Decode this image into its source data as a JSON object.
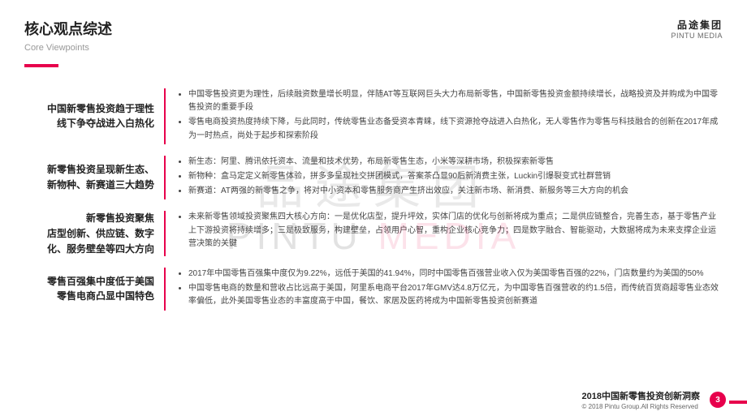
{
  "header": {
    "title_cn": "核心观点综述",
    "title_en": "Core Viewpoints",
    "logo_cn": "品途集团",
    "logo_en": "PINTU MEDIA"
  },
  "watermark": {
    "cn": "品途集团",
    "en_plain": "PINTU ",
    "en_red": "MEDIA"
  },
  "sections": [
    {
      "label": "中国新零售投资趋于理性\n线下争夺战进入白热化",
      "bullets": [
        "中国零售投资更为理性，后续融资数量增长明显，伴随AT等互联网巨头大力布局新零售，中国新零售投资金额持续增长，战略投资及并购成为中国零售投资的重要手段",
        "零售电商投资热度持续下降，与此同时，传统零售业态备受资本青睐，线下资源抢夺战进入白热化，无人零售作为零售与科技融合的创新在2017年成为一时热点，尚处于起步和探索阶段"
      ]
    },
    {
      "label": "新零售投资呈现新生态、\n新物种、新赛道三大趋势",
      "bullets": [
        "新生态：阿里、腾讯依托资本、流量和技术优势，布局新零售生态，小米等深耕市场，积极探索新零售",
        "新物种：盒马定定义新零售体验，拼多多呈现社交拼团模式，答案茶凸显90后新消费主张，Luckin引爆裂变式社群营销",
        "新赛道：AT两强的新零售之争，将对中小资本和零售服务商产生挤出效应，关注新市场、新消费、新服务等三大方向的机会"
      ]
    },
    {
      "label": "新零售投资聚焦\n店型创新、供应链、数字\n化、服务壁垒等四大方向",
      "bullets": [
        "未来新零售领域投资聚焦四大核心方向：一是优化店型，提升坪效，实体门店的优化与创新将成为重点；二是供应链整合，完善生态，基于零售产业上下游投资将持续增多；三是极致服务，构建壁垒，占领用户心智，重构企业核心竞争力；四是数字融合、智能驱动，大数据将成为未来支撑企业运营决策的关键"
      ]
    },
    {
      "label": "零售百强集中度低于美国\n零售电商凸显中国特色",
      "bullets": [
        "2017年中国零售百强集中度仅为9.22%，远低于美国的41.94%，同时中国零售百强营业收入仅为美国零售百强的22%，门店数量约为美国的50%",
        "中国零售电商的数量和营收占比远高于美国，阿里系电商平台2017年GMV达4.8万亿元，为中国零售百强营收的约1.5倍，而传统百货商超零售业态效率偏低，此外美国零售业态的丰富度高于中国，餐饮、家居及医药将成为中国新零售投资创新赛道"
      ]
    }
  ],
  "footer": {
    "doc_title": "2018中国新零售投资创新洞察",
    "copyright": "© 2018 Pintu Group.All Rights Reserved",
    "page": "3"
  },
  "colors": {
    "accent": "#e7004c"
  }
}
